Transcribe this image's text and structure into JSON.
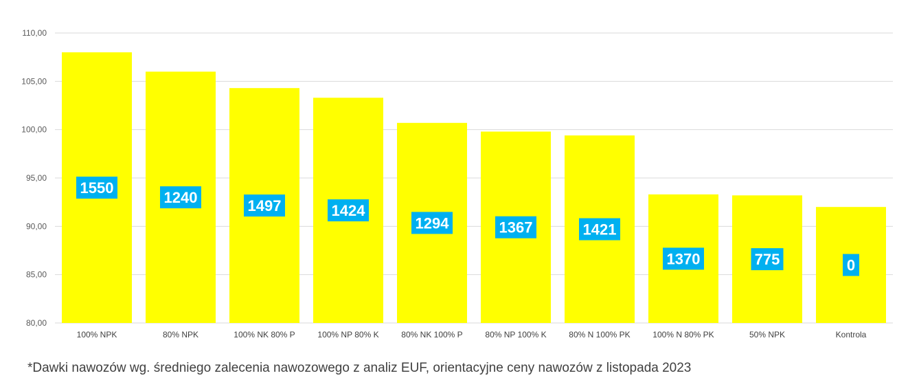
{
  "chart_data": {
    "type": "bar",
    "categories": [
      "100% NPK",
      "80% NPK",
      "100% NK 80% P",
      "100% NP 80% K",
      "80% NK 100% P",
      "80% NP 100% K",
      "80% N 100% PK",
      "100% N 80% PK",
      "50% NPK",
      "Kontrola"
    ],
    "values": [
      108.0,
      106.0,
      104.3,
      103.3,
      100.7,
      99.8,
      99.4,
      93.3,
      93.2,
      92.0
    ],
    "data_labels": [
      "1550",
      "1240",
      "1497",
      "1424",
      "1294",
      "1367",
      "1421",
      "1370",
      "775",
      "0"
    ],
    "yticks": [
      "80,00",
      "85,00",
      "90,00",
      "95,00",
      "100,00",
      "105,00",
      "110,00"
    ],
    "ylim": [
      80,
      110
    ],
    "grid": true,
    "legend": "none",
    "title": "",
    "xlabel": "",
    "ylabel": "",
    "colors": {
      "bar": "#ffff00",
      "label_box": "#00b0f0",
      "label_text": "#ffffff",
      "grid": "#d9d9d9"
    }
  },
  "footnote": "*Dawki nawozów wg. średniego zalecenia nawozowego z analiz EUF, orientacyjne ceny nawozów z listopada 2023"
}
